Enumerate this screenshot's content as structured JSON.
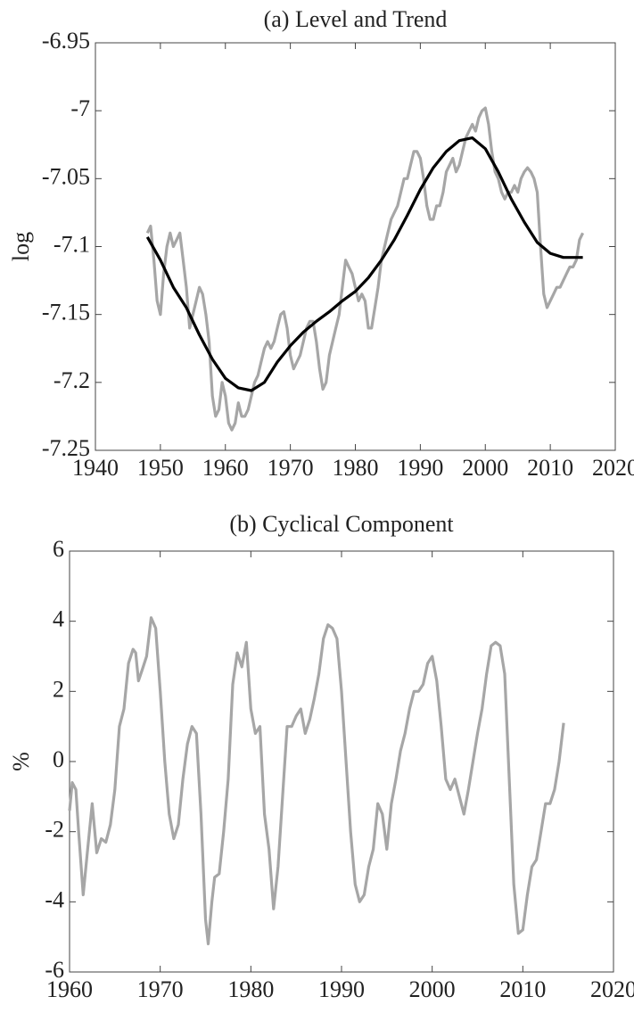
{
  "chart_data": [
    {
      "type": "line",
      "title": "(a) Level and Trend",
      "ylabel": "log",
      "xlim": [
        1940,
        2020
      ],
      "xticks": [
        1940,
        1950,
        1960,
        1970,
        1980,
        1990,
        2000,
        2010,
        2020
      ],
      "ylim": [
        -7.25,
        -6.95
      ],
      "yticks": [
        -7.25,
        -7.2,
        -7.15,
        -7.1,
        -7.05,
        -7,
        -6.95
      ],
      "series": [
        {
          "color": "#a6a6a6",
          "x": [
            1948,
            1948.5,
            1949,
            1949.5,
            1950,
            1950.5,
            1951,
            1951.5,
            1952,
            1952.5,
            1953,
            1953.5,
            1954,
            1954.5,
            1955,
            1955.5,
            1956,
            1956.5,
            1957,
            1957.5,
            1958,
            1958.5,
            1959,
            1959.5,
            1960,
            1960.5,
            1961,
            1961.5,
            1962,
            1962.5,
            1963,
            1963.5,
            1964,
            1964.5,
            1965,
            1965.5,
            1966,
            1966.5,
            1967,
            1967.5,
            1968,
            1968.5,
            1969,
            1969.5,
            1970,
            1970.5,
            1971,
            1971.5,
            1972,
            1972.5,
            1973,
            1973.5,
            1974,
            1974.5,
            1975,
            1975.5,
            1976,
            1976.5,
            1977,
            1977.5,
            1978,
            1978.5,
            1979,
            1979.5,
            1980,
            1980.5,
            1981,
            1981.5,
            1982,
            1982.5,
            1983,
            1983.5,
            1984,
            1984.5,
            1985,
            1985.5,
            1986,
            1986.5,
            1987,
            1987.5,
            1988,
            1988.5,
            1989,
            1989.5,
            1990,
            1990.5,
            1991,
            1991.5,
            1992,
            1992.5,
            1993,
            1993.5,
            1994,
            1994.5,
            1995,
            1995.5,
            1996,
            1996.5,
            1997,
            1997.5,
            1998,
            1998.5,
            1999,
            1999.5,
            2000,
            2000.5,
            2001,
            2001.5,
            2002,
            2002.5,
            2003,
            2003.5,
            2004,
            2004.5,
            2005,
            2005.5,
            2006,
            2006.5,
            2007,
            2007.5,
            2008,
            2008.5,
            2009,
            2009.5,
            2010,
            2010.5,
            2011,
            2011.5,
            2012,
            2012.5,
            2013,
            2013.5,
            2014,
            2014.5,
            2015
          ],
          "values": [
            -7.09,
            -7.085,
            -7.11,
            -7.14,
            -7.15,
            -7.12,
            -7.1,
            -7.09,
            -7.1,
            -7.095,
            -7.09,
            -7.11,
            -7.13,
            -7.16,
            -7.15,
            -7.14,
            -7.13,
            -7.135,
            -7.15,
            -7.17,
            -7.21,
            -7.225,
            -7.22,
            -7.2,
            -7.21,
            -7.23,
            -7.235,
            -7.23,
            -7.215,
            -7.225,
            -7.225,
            -7.22,
            -7.21,
            -7.2,
            -7.195,
            -7.185,
            -7.175,
            -7.17,
            -7.175,
            -7.17,
            -7.16,
            -7.15,
            -7.148,
            -7.16,
            -7.18,
            -7.19,
            -7.185,
            -7.18,
            -7.17,
            -7.16,
            -7.155,
            -7.155,
            -7.17,
            -7.19,
            -7.205,
            -7.2,
            -7.18,
            -7.17,
            -7.16,
            -7.15,
            -7.13,
            -7.11,
            -7.115,
            -7.12,
            -7.13,
            -7.14,
            -7.135,
            -7.14,
            -7.16,
            -7.16,
            -7.145,
            -7.13,
            -7.11,
            -7.1,
            -7.09,
            -7.08,
            -7.075,
            -7.07,
            -7.06,
            -7.05,
            -7.05,
            -7.04,
            -7.03,
            -7.03,
            -7.035,
            -7.05,
            -7.07,
            -7.08,
            -7.08,
            -7.07,
            -7.07,
            -7.06,
            -7.045,
            -7.04,
            -7.035,
            -7.045,
            -7.04,
            -7.03,
            -7.02,
            -7.015,
            -7.01,
            -7.015,
            -7.005,
            -7.0,
            -6.998,
            -7.01,
            -7.03,
            -7.045,
            -7.05,
            -7.06,
            -7.065,
            -7.06,
            -7.06,
            -7.055,
            -7.06,
            -7.05,
            -7.045,
            -7.042,
            -7.045,
            -7.05,
            -7.06,
            -7.1,
            -7.135,
            -7.145,
            -7.14,
            -7.135,
            -7.13,
            -7.13,
            -7.125,
            -7.12,
            -7.115,
            -7.115,
            -7.11,
            -7.095,
            -7.09
          ]
        },
        {
          "color": "#000000",
          "x": [
            1948,
            1950,
            1952,
            1954,
            1956,
            1958,
            1960,
            1962,
            1964,
            1966,
            1968,
            1970,
            1972,
            1974,
            1976,
            1978,
            1980,
            1982,
            1984,
            1986,
            1988,
            1990,
            1992,
            1994,
            1996,
            1998,
            2000,
            2002,
            2004,
            2006,
            2008,
            2010,
            2012,
            2014,
            2015
          ],
          "values": [
            -7.093,
            -7.11,
            -7.13,
            -7.145,
            -7.165,
            -7.183,
            -7.197,
            -7.204,
            -7.206,
            -7.2,
            -7.185,
            -7.173,
            -7.163,
            -7.155,
            -7.148,
            -7.14,
            -7.133,
            -7.123,
            -7.11,
            -7.095,
            -7.077,
            -7.058,
            -7.042,
            -7.03,
            -7.022,
            -7.02,
            -7.028,
            -7.045,
            -7.065,
            -7.082,
            -7.097,
            -7.105,
            -7.108,
            -7.108,
            -7.108
          ]
        }
      ]
    },
    {
      "type": "line",
      "title": "(b) Cyclical Component",
      "ylabel": "%",
      "xlim": [
        1960,
        2020
      ],
      "xticks": [
        1960,
        1970,
        1980,
        1990,
        2000,
        2010,
        2020
      ],
      "ylim": [
        -6,
        6
      ],
      "yticks": [
        -6,
        -4,
        -2,
        0,
        2,
        4,
        6
      ],
      "series": [
        {
          "color": "#a6a6a6",
          "x": [
            1960,
            1960.3,
            1960.7,
            1961,
            1961.5,
            1962,
            1962.5,
            1963,
            1963.5,
            1964,
            1964.5,
            1965,
            1965.5,
            1966,
            1966.5,
            1967,
            1967.3,
            1967.6,
            1968,
            1968.5,
            1969,
            1969.5,
            1970,
            1970.5,
            1971,
            1971.5,
            1972,
            1972.5,
            1973,
            1973.5,
            1974,
            1974.5,
            1975,
            1975.3,
            1975.7,
            1976,
            1976.5,
            1977,
            1977.5,
            1978,
            1978.5,
            1979,
            1979.5,
            1980,
            1980.5,
            1981,
            1981.5,
            1982,
            1982.5,
            1983,
            1983.5,
            1984,
            1984.5,
            1985,
            1985.5,
            1986,
            1986.5,
            1987,
            1987.5,
            1988,
            1988.5,
            1989,
            1989.5,
            1990,
            1990.5,
            1991,
            1991.5,
            1992,
            1992.5,
            1993,
            1993.5,
            1994,
            1994.5,
            1995,
            1995.5,
            1996,
            1996.5,
            1997,
            1997.5,
            1998,
            1998.5,
            1999,
            1999.5,
            2000,
            2000.5,
            2001,
            2001.5,
            2002,
            2002.5,
            2003,
            2003.5,
            2004,
            2004.5,
            2005,
            2005.5,
            2006,
            2006.5,
            2007,
            2007.5,
            2008,
            2008.5,
            2009,
            2009.5,
            2010,
            2010.5,
            2011,
            2011.5,
            2012,
            2012.5,
            2013,
            2013.5,
            2014,
            2014.5
          ],
          "values": [
            -1.4,
            -0.6,
            -0.8,
            -2,
            -3.8,
            -2.5,
            -1.2,
            -2.6,
            -2.2,
            -2.3,
            -1.8,
            -0.8,
            1.0,
            1.5,
            2.8,
            3.2,
            3.1,
            2.3,
            2.6,
            3.0,
            4.1,
            3.8,
            2.0,
            0,
            -1.5,
            -2.2,
            -1.8,
            -0.5,
            0.5,
            1.0,
            0.8,
            -1.5,
            -4.5,
            -5.2,
            -4.0,
            -3.3,
            -3.2,
            -2.0,
            -0.5,
            2.2,
            3.1,
            2.7,
            3.4,
            1.5,
            0.8,
            1.0,
            -1.5,
            -2.5,
            -4.2,
            -3.0,
            -1.0,
            1.0,
            1.0,
            1.3,
            1.5,
            0.8,
            1.2,
            1.8,
            2.5,
            3.5,
            3.9,
            3.8,
            3.5,
            2.0,
            0,
            -2.0,
            -3.5,
            -4.0,
            -3.8,
            -3.0,
            -2.5,
            -1.2,
            -1.5,
            -2.5,
            -1.2,
            -0.5,
            0.3,
            0.8,
            1.5,
            2.0,
            2.0,
            2.2,
            2.8,
            3.0,
            2.3,
            1.0,
            -0.5,
            -0.8,
            -0.5,
            -1.0,
            -1.5,
            -0.8,
            0,
            0.8,
            1.5,
            2.5,
            3.3,
            3.4,
            3.3,
            2.5,
            -0.5,
            -3.5,
            -4.9,
            -4.8,
            -3.8,
            -3.0,
            -2.8,
            -2.0,
            -1.2,
            -1.2,
            -0.8,
            0,
            1.1
          ]
        }
      ]
    }
  ]
}
